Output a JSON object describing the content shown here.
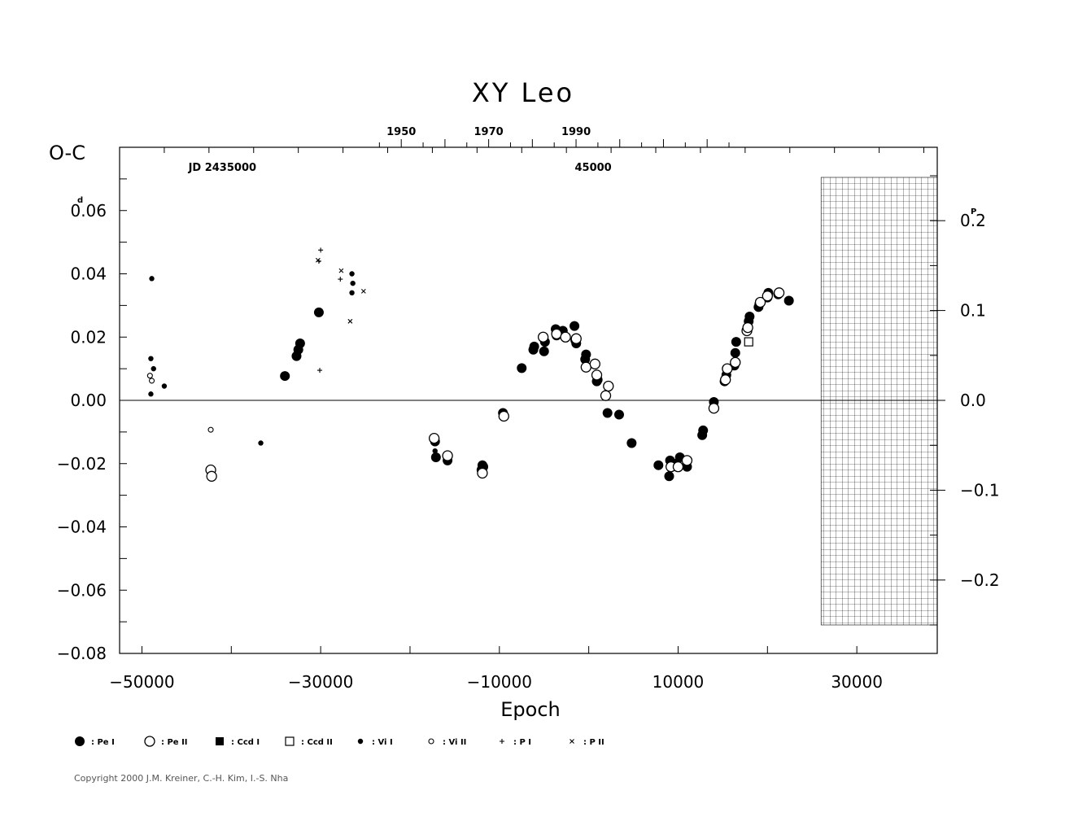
{
  "chart_data": {
    "type": "scatter",
    "title": "XY Leo",
    "ylabel": "O-C",
    "y_unit": "d",
    "xlabel": "Epoch",
    "xlim": [
      -52500,
      39000
    ],
    "ylim": [
      -0.08,
      0.08
    ],
    "x_ticks": [
      -50000,
      -30000,
      -10000,
      10000,
      30000
    ],
    "x_tick_labels": [
      "−50000",
      "−30000",
      "−10000",
      "10000",
      "30000"
    ],
    "y_ticks": [
      0.06,
      0.04,
      0.02,
      0.0,
      -0.02,
      -0.04,
      -0.06,
      -0.08
    ],
    "y_tick_labels": [
      "0.06",
      "0.04",
      "0.02",
      "0.00",
      "−0.02",
      "−0.04",
      "−0.06",
      "−0.08"
    ],
    "right_axis": {
      "unit": "P",
      "ticks": [
        0.2,
        0.1,
        0.0,
        -0.1,
        -0.2
      ],
      "tick_labels": [
        "0.2",
        "0.1",
        "0.0",
        "−0.1",
        "−0.2"
      ]
    },
    "top_axis": {
      "year_ticks": [
        1950,
        1970,
        1990
      ],
      "year_labels": [
        "1950",
        "1970",
        "1990"
      ],
      "jd_labels": [
        {
          "label": "JD 2435000",
          "epoch": -41000
        },
        {
          "label": "45000",
          "epoch": 500
        }
      ]
    },
    "future_region": {
      "from_epoch": 26000,
      "hatched": true
    },
    "series": [
      {
        "name": "Pe I",
        "marker": "filled-circle-large",
        "points": [
          [
            -34000,
            0.0077
          ],
          [
            -32700,
            0.014
          ],
          [
            -32500,
            0.016
          ],
          [
            -32300,
            0.018
          ],
          [
            -30200,
            0.0278
          ],
          [
            -17200,
            -0.013
          ],
          [
            -17100,
            -0.018
          ],
          [
            -15800,
            -0.019
          ],
          [
            -12000,
            -0.022
          ],
          [
            -11900,
            -0.0205
          ],
          [
            -11800,
            -0.021
          ],
          [
            -9600,
            -0.004
          ],
          [
            -7500,
            0.0102
          ],
          [
            -6200,
            0.016
          ],
          [
            -6100,
            0.017
          ],
          [
            -5000,
            0.0155
          ],
          [
            -4900,
            0.0185
          ],
          [
            -3700,
            0.0225
          ],
          [
            -3600,
            0.0205
          ],
          [
            -2900,
            0.022
          ],
          [
            -1600,
            0.0235
          ],
          [
            -1500,
            0.019
          ],
          [
            -1400,
            0.018
          ],
          [
            -400,
            0.013
          ],
          [
            -300,
            0.0145
          ],
          [
            900,
            0.006
          ],
          [
            1000,
            0.0065
          ],
          [
            2100,
            -0.004
          ],
          [
            3400,
            -0.0045
          ],
          [
            4800,
            -0.0135
          ],
          [
            7800,
            -0.0205
          ],
          [
            9000,
            -0.024
          ],
          [
            9100,
            -0.019
          ],
          [
            9300,
            -0.0205
          ],
          [
            9800,
            -0.02
          ],
          [
            10200,
            -0.018
          ],
          [
            11000,
            -0.021
          ],
          [
            12700,
            -0.011
          ],
          [
            12800,
            -0.0095
          ],
          [
            14000,
            -0.0005
          ],
          [
            15200,
            0.006
          ],
          [
            15400,
            0.008
          ],
          [
            16300,
            0.011
          ],
          [
            16400,
            0.015
          ],
          [
            16500,
            0.0185
          ],
          [
            17900,
            0.025
          ],
          [
            18000,
            0.0265
          ],
          [
            19000,
            0.0295
          ],
          [
            19100,
            0.0305
          ],
          [
            20000,
            0.0325
          ],
          [
            20100,
            0.034
          ],
          [
            21200,
            0.0335
          ],
          [
            22400,
            0.0315
          ]
        ]
      },
      {
        "name": "Pe II",
        "marker": "open-circle-large",
        "points": [
          [
            -42300,
            -0.022
          ],
          [
            -42200,
            -0.024
          ],
          [
            -17300,
            -0.012
          ],
          [
            -15800,
            -0.0175
          ],
          [
            -11900,
            -0.023
          ],
          [
            -9500,
            -0.005
          ],
          [
            -5100,
            0.02
          ],
          [
            -3600,
            0.021
          ],
          [
            -2600,
            0.02
          ],
          [
            -1400,
            0.0195
          ],
          [
            -300,
            0.0105
          ],
          [
            700,
            0.0115
          ],
          [
            900,
            0.008
          ],
          [
            1900,
            0.0015
          ],
          [
            2200,
            0.0045
          ],
          [
            9200,
            -0.021
          ],
          [
            10000,
            -0.021
          ],
          [
            11000,
            -0.019
          ],
          [
            14000,
            -0.0025
          ],
          [
            15300,
            0.0065
          ],
          [
            15500,
            0.01
          ],
          [
            16400,
            0.012
          ],
          [
            17700,
            0.022
          ],
          [
            17800,
            0.023
          ],
          [
            19200,
            0.031
          ],
          [
            20000,
            0.033
          ],
          [
            21300,
            0.034
          ]
        ]
      },
      {
        "name": "Ccd I",
        "marker": "filled-square",
        "points": []
      },
      {
        "name": "Ccd II",
        "marker": "open-square",
        "points": [
          [
            17900,
            0.0185
          ]
        ]
      },
      {
        "name": "Vi I",
        "marker": "filled-circle-small",
        "points": [
          [
            -48900,
            0.0385
          ],
          [
            -49000,
            0.0132
          ],
          [
            -48700,
            0.01
          ],
          [
            -47500,
            0.0045
          ],
          [
            -49000,
            0.002
          ],
          [
            -36700,
            -0.0135
          ],
          [
            -17200,
            -0.016
          ],
          [
            -26500,
            0.04
          ],
          [
            -26400,
            0.037
          ],
          [
            -26500,
            0.034
          ]
        ]
      },
      {
        "name": "Vi II",
        "marker": "open-circle-small",
        "points": [
          [
            -49100,
            0.0078
          ],
          [
            -48900,
            0.0062
          ],
          [
            -42300,
            -0.0093
          ]
        ]
      },
      {
        "name": "P I",
        "marker": "plus",
        "points": [
          [
            -30000,
            0.0475
          ],
          [
            -30200,
            0.044
          ],
          [
            -30100,
            0.0095
          ],
          [
            -27800,
            0.0383
          ]
        ]
      },
      {
        "name": "P II",
        "marker": "cross",
        "points": [
          [
            -30300,
            0.0443
          ],
          [
            -27700,
            0.041
          ],
          [
            -25200,
            0.0345
          ],
          [
            -26700,
            0.025
          ]
        ]
      }
    ],
    "legend": {
      "placement": "bottom",
      "entries": [
        {
          "marker": "filled-circle-large",
          "label": ": Pe I"
        },
        {
          "marker": "open-circle-large",
          "label": ": Pe II"
        },
        {
          "marker": "filled-square",
          "label": ": Ccd I"
        },
        {
          "marker": "open-square",
          "label": ": Ccd II"
        },
        {
          "marker": "filled-circle-small",
          "label": ": Vi I"
        },
        {
          "marker": "open-circle-small",
          "label": ": Vi II"
        },
        {
          "marker": "plus",
          "label": ": P I"
        },
        {
          "marker": "cross",
          "label": ": P II"
        }
      ]
    },
    "zero_line": true,
    "grid": false
  },
  "copyright": "Copyright 2000 J.M. Kreiner, C.-H. Kim, I.-S. Nha"
}
